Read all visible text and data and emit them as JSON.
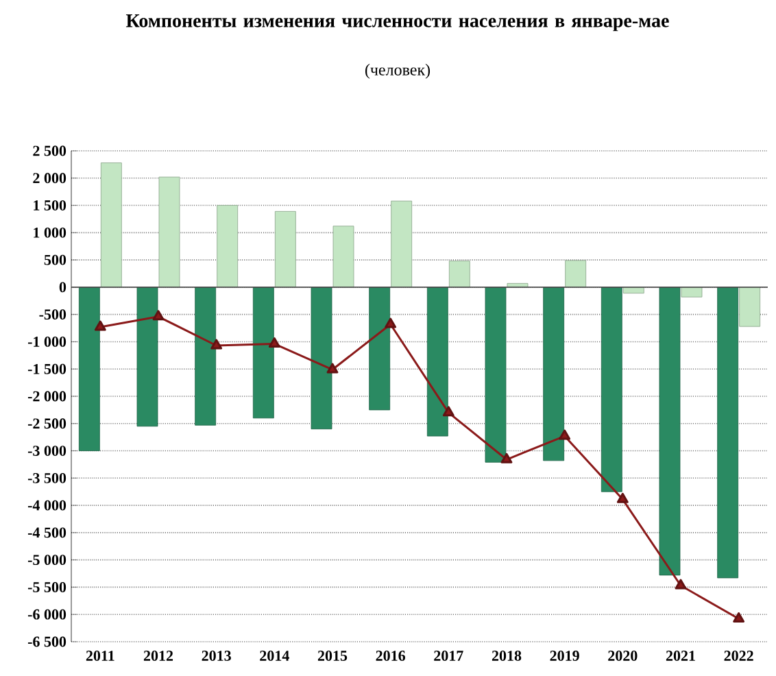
{
  "chart_data": {
    "type": "bar",
    "title": "Компоненты изменения численности населения в январе-мае",
    "subtitle": "(человек)",
    "categories": [
      "2011",
      "2012",
      "2013",
      "2014",
      "2015",
      "2016",
      "2017",
      "2018",
      "2019",
      "2020",
      "2021",
      "2022"
    ],
    "series": [
      {
        "color": "#2a8a62",
        "values": [
          -3000,
          -2550,
          -2530,
          -2400,
          -2600,
          -2250,
          -2730,
          -3210,
          -3180,
          -3750,
          -5280,
          -5330
        ]
      },
      {
        "color": "#c3e6c3",
        "values": [
          2280,
          2020,
          1500,
          1390,
          1120,
          1580,
          480,
          70,
          490,
          -110,
          -180,
          -720
        ]
      },
      {
        "type": "line",
        "color": "#8b1a1a",
        "marker": "triangle",
        "values": [
          -730,
          -540,
          -1070,
          -1040,
          -1510,
          -680,
          -2300,
          -3160,
          -2730,
          -3890,
          -5470,
          -6080
        ]
      }
    ],
    "ylim": [
      -6500,
      2500
    ],
    "yticks": [
      {
        "value": -6500,
        "label": "-6 500"
      },
      {
        "value": -6000,
        "label": "-6 000"
      },
      {
        "value": -5500,
        "label": "-5 500"
      },
      {
        "value": -5000,
        "label": "-5 000"
      },
      {
        "value": -4500,
        "label": "-4 500"
      },
      {
        "value": -4000,
        "label": "-4 000"
      },
      {
        "value": -3500,
        "label": "-3 500"
      },
      {
        "value": -3000,
        "label": "-3 000"
      },
      {
        "value": -2500,
        "label": "-2 500"
      },
      {
        "value": -2000,
        "label": "-2 000"
      },
      {
        "value": -1500,
        "label": "-1 500"
      },
      {
        "value": -1000,
        "label": "-1 000"
      },
      -500,
      0,
      500,
      {
        "value": 1000,
        "label": "1 000"
      },
      {
        "value": 1500,
        "label": "1 500"
      },
      {
        "value": 2000,
        "label": "2 000"
      },
      {
        "value": 2500,
        "label": "2 500"
      }
    ],
    "grid": "y"
  }
}
